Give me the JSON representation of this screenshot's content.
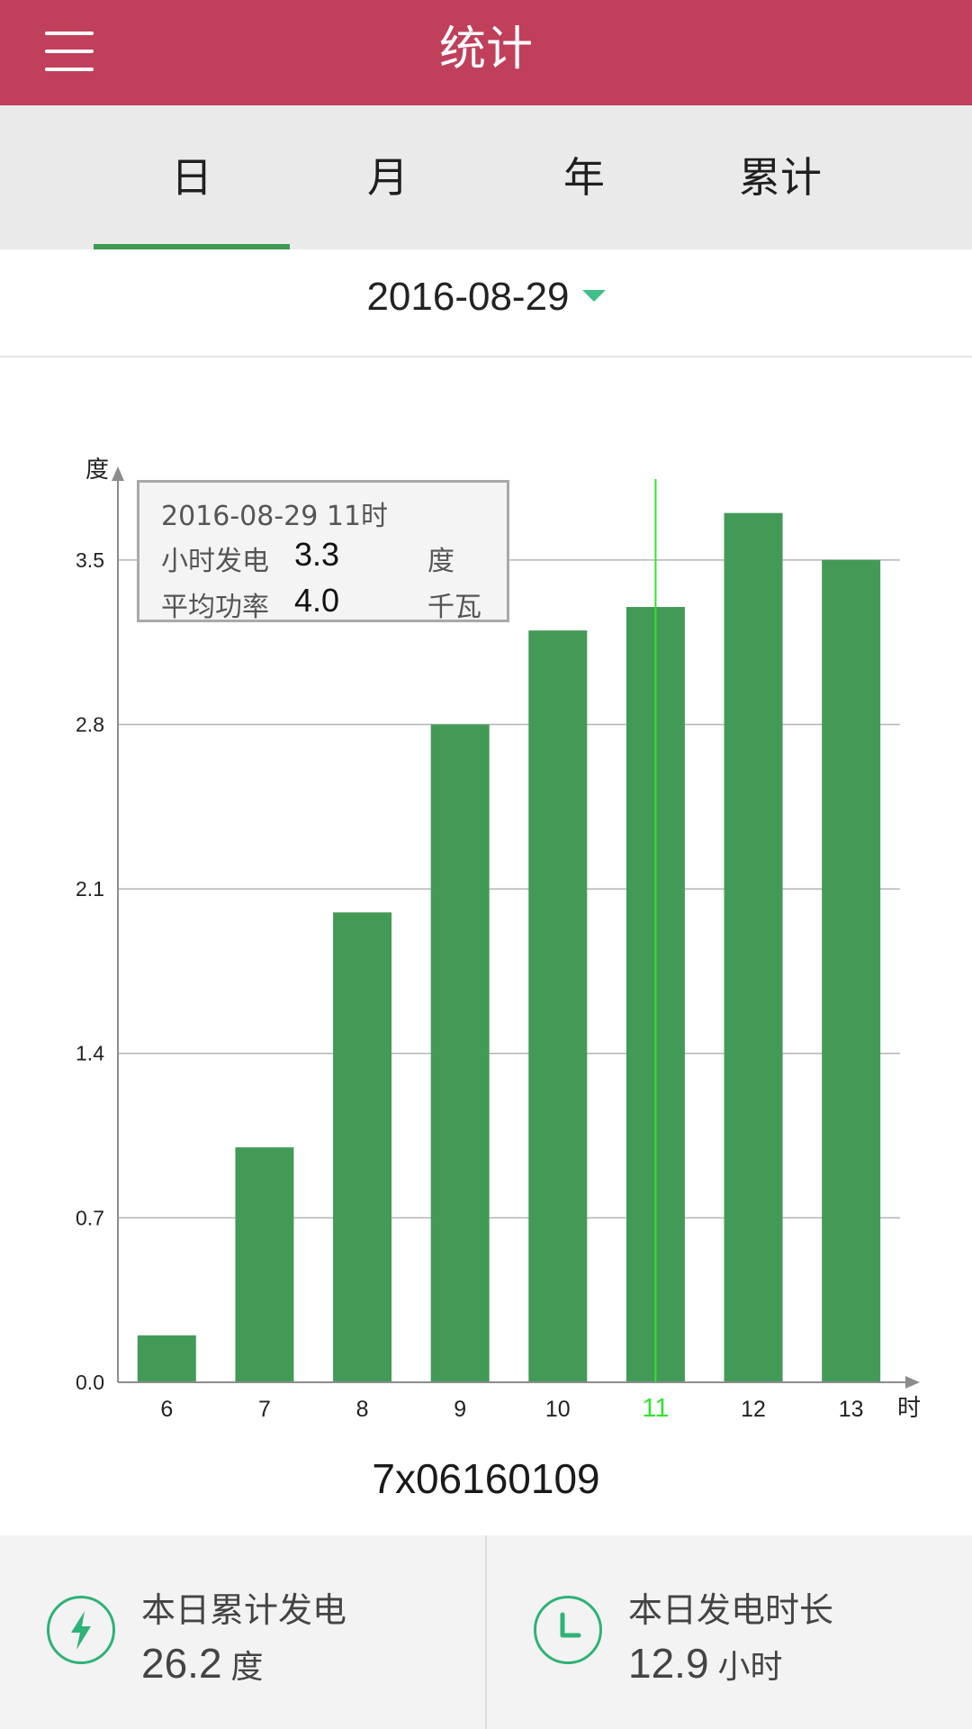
{
  "header": {
    "title": "统计"
  },
  "tabs": [
    {
      "label": "日",
      "active": true
    },
    {
      "label": "月",
      "active": false
    },
    {
      "label": "年",
      "active": false
    },
    {
      "label": "累计",
      "active": false
    }
  ],
  "date": {
    "value": "2016-08-29"
  },
  "tooltip": {
    "title": "2016-08-29 11时",
    "rows": [
      {
        "label": "小时发电",
        "value": "3.3",
        "unit": "度"
      },
      {
        "label": "平均功率",
        "value": "4.0",
        "unit": "千瓦"
      }
    ]
  },
  "chart_data": {
    "type": "bar",
    "ylabel": "度",
    "xlabel": "时",
    "categories": [
      "6",
      "7",
      "8",
      "9",
      "10",
      "11",
      "12",
      "13"
    ],
    "values": [
      0.2,
      1.0,
      2.0,
      2.8,
      3.2,
      3.3,
      3.7,
      3.5
    ],
    "yticks": [
      "0.0",
      "0.7",
      "1.4",
      "2.1",
      "2.8",
      "3.5"
    ],
    "ylim": [
      0,
      3.85
    ],
    "selected_category": "11",
    "grid": true,
    "colors": {
      "bar": "#439a57",
      "cursor": "#34e134",
      "selected_tick": "#34e134",
      "axis": "#8c8c8c",
      "grid": "#b4b4b4"
    }
  },
  "device": {
    "id": "7x06160109"
  },
  "stats": [
    {
      "label": "本日累计发电",
      "value": "26.2",
      "unit": "度",
      "icon": "lightning-icon"
    },
    {
      "label": "本日发电时长",
      "value": "12.9",
      "unit": "小时",
      "icon": "clock-icon"
    }
  ],
  "colors": {
    "header": "#c0405c",
    "tab_indicator": "#3f9a54",
    "accent": "#3fbf8a",
    "icon_stroke": "#2eb276"
  }
}
